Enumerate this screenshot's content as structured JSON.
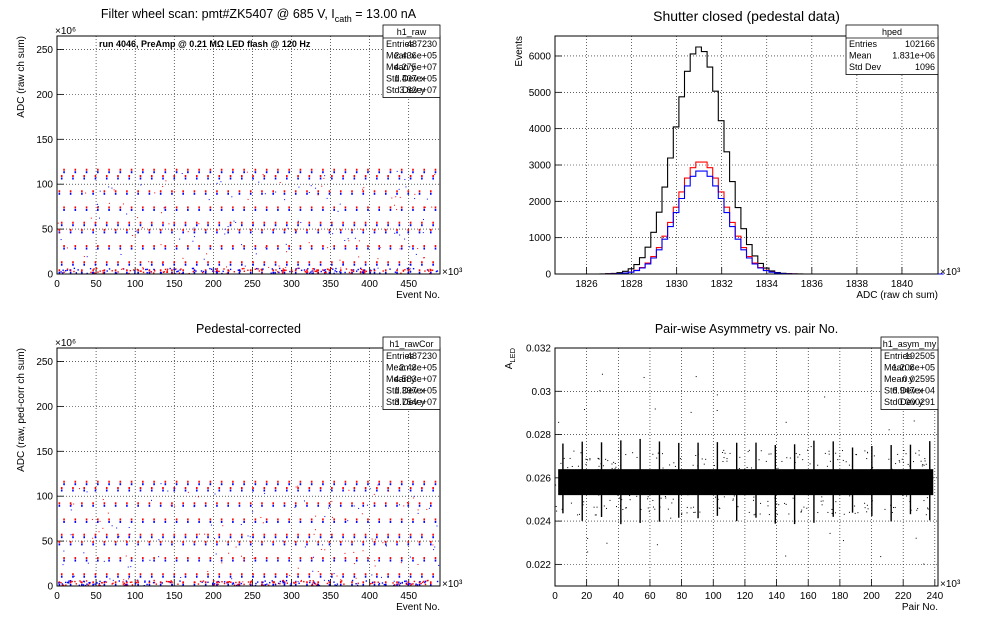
{
  "chart_data": [
    {
      "type": "scatter",
      "title": "Filter wheel scan: pmt#ZK5407 @   685 V, I",
      "title_sub": "cath",
      "title_tail": " = 13.00 nA",
      "annotation": "run 4046, PreAmp @ 0.21 MΩ LED flash @  120 Hz",
      "xlabel": "Event No.",
      "ylabel": "ADC (raw ch sum)",
      "x_exponent": "×10³",
      "y_exponent": "×10⁶",
      "xlim": [
        0,
        490
      ],
      "ylim": [
        0,
        265
      ],
      "grid": true,
      "x_ticks": [
        "0",
        "50",
        "100",
        "150",
        "200",
        "250",
        "300",
        "350",
        "400",
        "450"
      ],
      "y_ticks": [
        "0",
        "50",
        "100",
        "150",
        "200",
        "250"
      ],
      "levels": [
        3,
        12,
        30,
        48,
        56,
        73,
        91,
        108,
        115
      ],
      "marker_colors": [
        "#ff0000",
        "#0000ff"
      ],
      "stats_box": {
        "name": "h1_raw",
        "rows": [
          {
            "label": "Entries",
            "value": "487230"
          },
          {
            "label": "Mean x",
            "value": "2.436e+05"
          },
          {
            "label": "Mean y",
            "value": "4.275e+07"
          },
          {
            "label": "Std Dev x",
            "value": "1.407e+05"
          },
          {
            "label": "Std Dev y",
            "value": "3.82e+07"
          }
        ]
      }
    },
    {
      "type": "line",
      "title": "Shutter closed (pedestal data)",
      "xlabel": "ADC (raw ch sum)",
      "ylabel": "Events",
      "x_exponent": "×10³",
      "xlim": [
        1824.6,
        1841.6
      ],
      "ylim": [
        0,
        6550
      ],
      "grid": true,
      "x_ticks": [
        "1826",
        "1828",
        "1830",
        "1832",
        "1834",
        "1836",
        "1838",
        "1840"
      ],
      "y_ticks": [
        "0",
        "1000",
        "2000",
        "3000",
        "4000",
        "5000",
        "6000"
      ],
      "series": [
        {
          "color": "#000000",
          "mean": 1831.0,
          "sigma": 1.1,
          "peak": 6250
        },
        {
          "color": "#ff0000",
          "mean": 1831.1,
          "sigma": 1.1,
          "peak": 3100
        },
        {
          "color": "#0000ff",
          "mean": 1831.1,
          "sigma": 1.1,
          "peak": 2850
        }
      ],
      "stats_box": {
        "name": "hped",
        "rows": [
          {
            "label": "Entries",
            "value": "102166"
          },
          {
            "label": "Mean",
            "value": "1.831e+06"
          },
          {
            "label": "Std Dev",
            "value": "1096"
          }
        ]
      }
    },
    {
      "type": "scatter",
      "title": "Pedestal-corrected",
      "xlabel": "Event No.",
      "ylabel": "ADC (raw, ped-corr ch sum)",
      "x_exponent": "×10³",
      "y_exponent": "×10⁶",
      "xlim": [
        0,
        490
      ],
      "ylim": [
        0,
        265
      ],
      "grid": true,
      "x_ticks": [
        "0",
        "50",
        "100",
        "150",
        "200",
        "250",
        "300",
        "350",
        "400",
        "450"
      ],
      "y_ticks": [
        "0",
        "50",
        "100",
        "150",
        "200",
        "250"
      ],
      "levels": [
        3,
        12,
        30,
        48,
        56,
        73,
        91,
        108,
        115
      ],
      "marker_colors": [
        "#ff0000",
        "#0000ff"
      ],
      "stats_box": {
        "name": "h1_rawCor",
        "rows": [
          {
            "label": "Entries",
            "value": "487230"
          },
          {
            "label": "Mean x",
            "value": "2.43e+05"
          },
          {
            "label": "Mean y",
            "value": "4.583e+07"
          },
          {
            "label": "Std Dev x",
            "value": "1.397e+05"
          },
          {
            "label": "Std Dev y",
            "value": "3.754e+07"
          }
        ]
      }
    },
    {
      "type": "scatter",
      "title": "Pair-wise Asymmetry vs. pair No.",
      "xlabel": "Pair No.",
      "ylabel": "A",
      "ylabel_sub": "LED",
      "x_exponent": "×10³",
      "xlim": [
        0,
        242
      ],
      "ylim": [
        0.021,
        0.032
      ],
      "grid": true,
      "x_ticks": [
        "0",
        "20",
        "40",
        "60",
        "80",
        "100",
        "120",
        "140",
        "160",
        "180",
        "200",
        "220",
        "240"
      ],
      "y_ticks": [
        "0.022",
        "0.024",
        "0.026",
        "0.028",
        "0.03",
        "0.032"
      ],
      "band_center": 0.0258,
      "band_halfwidth": 0.0006,
      "spike_period": 12.2,
      "stats_box": {
        "name": "h1_asym_my",
        "rows": [
          {
            "label": "Entries",
            "value": "192505"
          },
          {
            "label": "Mean x",
            "value": "1.208e+05"
          },
          {
            "label": "Mean y",
            "value": "0.02595"
          },
          {
            "label": "Std Dev x",
            "value": "6.947e+04"
          },
          {
            "label": "Std Dev y",
            "value": "0.000291"
          }
        ]
      }
    }
  ]
}
